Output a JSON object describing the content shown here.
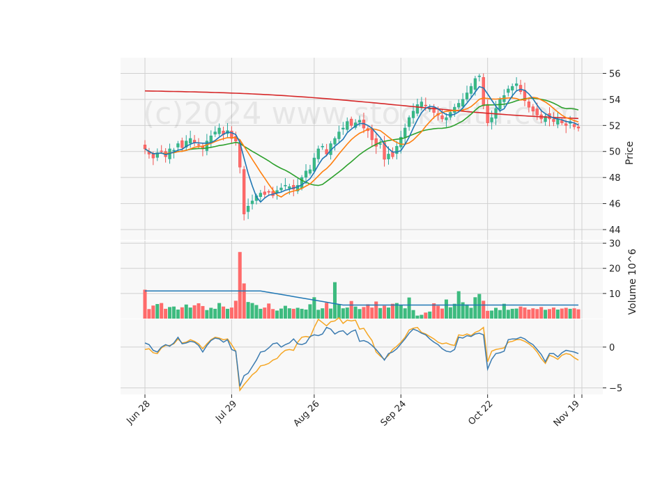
{
  "chart_data": {
    "type": "candlestick",
    "watermark": "(c)2024 www.stockdata.com",
    "colors": {
      "up": "#26a69a",
      "up_fill": "#3dbb7f",
      "down": "#ef5350",
      "down_fill": "#ff6b6b",
      "panel_bg": "#f7f7f7",
      "grid": "#d0d0d0",
      "ma_fast": "#1f77b4",
      "ma_mid": "#ff7f0e",
      "ma_slow": "#2ca02c",
      "ma_long": "#d62728",
      "osc_a": "#3b7bb0",
      "osc_b": "#f5a623"
    },
    "x_ticks": [
      "Jun 28",
      "Jul 29",
      "Aug 26",
      "Sep 24",
      "Oct 22",
      "Nov 19"
    ],
    "x_tick_index": [
      0,
      21,
      41,
      62,
      83,
      104
    ],
    "price_panel": {
      "ylabel": "Price",
      "ylim": [
        43.2,
        57.2
      ],
      "ticks": [
        44,
        46,
        48,
        50,
        52,
        54,
        56
      ]
    },
    "volume_panel": {
      "ylabel": "Volume  10^6",
      "ylim": [
        0,
        31
      ],
      "ticks": [
        10,
        20,
        30
      ]
    },
    "osc_panel": {
      "ylim": [
        -5.8,
        3.4
      ],
      "ticks": [
        -5,
        0
      ]
    },
    "closes": [
      50.2,
      49.8,
      49.5,
      49.9,
      50.0,
      49.6,
      50.2,
      50.1,
      50.6,
      50.3,
      50.8,
      51.0,
      50.7,
      50.5,
      50.2,
      50.8,
      51.2,
      51.5,
      51.8,
      51.3,
      51.6,
      51.0,
      50.8,
      48.8,
      45.2,
      45.8,
      46.2,
      46.6,
      46.8,
      46.7,
      46.9,
      46.6,
      47.0,
      47.2,
      47.4,
      47.3,
      47.1,
      47.4,
      48.0,
      48.5,
      48.6,
      49.5,
      50.2,
      50.4,
      49.8,
      50.6,
      51.0,
      51.5,
      51.8,
      52.3,
      52.0,
      52.2,
      52.4,
      51.8,
      51.6,
      50.9,
      50.4,
      50.6,
      49.4,
      49.8,
      49.6,
      50.4,
      51.1,
      51.8,
      52.6,
      53.1,
      53.6,
      53.8,
      53.5,
      53.3,
      53.0,
      52.8,
      52.5,
      52.6,
      53.0,
      53.4,
      53.7,
      54.0,
      54.5,
      55.0,
      55.6,
      55.8,
      53.5,
      52.2,
      52.6,
      53.3,
      54.0,
      54.3,
      54.8,
      55.0,
      55.2,
      54.6,
      53.9,
      53.4,
      53.1,
      52.8,
      52.5,
      52.7,
      52.5,
      52.3,
      52.5,
      52.2,
      52.0,
      52.3,
      51.9,
      51.8
    ],
    "volumes": [
      11.5,
      3.8,
      5.2,
      5.8,
      6.2,
      3.9,
      4.6,
      4.8,
      3.6,
      4.5,
      5.6,
      4.4,
      5.3,
      6.1,
      5.0,
      3.4,
      4.3,
      3.9,
      6.2,
      4.8,
      3.9,
      4.4,
      7.1,
      26.5,
      14.0,
      6.6,
      6.2,
      5.4,
      3.9,
      4.4,
      6.0,
      3.8,
      3.2,
      4.0,
      5.1,
      4.1,
      3.9,
      4.3,
      3.9,
      3.6,
      5.7,
      8.5,
      3.5,
      4.1,
      6.3,
      4.0,
      14.5,
      5.8,
      4.1,
      4.4,
      7.0,
      4.8,
      3.8,
      4.6,
      5.7,
      4.4,
      6.8,
      4.2,
      5.1,
      4.4,
      5.9,
      6.2,
      5.4,
      4.1,
      8.4,
      3.4,
      1.2,
      1.5,
      2.4,
      2.8,
      6.1,
      5.1,
      4.0,
      7.6,
      4.5,
      5.9,
      10.9,
      6.5,
      5.6,
      4.3,
      8.5,
      9.8,
      7.1,
      3.1,
      3.2,
      4.3,
      3.4,
      5.9,
      3.5,
      3.9,
      4.0,
      4.8,
      4.4,
      3.6,
      4.1,
      3.8,
      4.6,
      3.5,
      3.8,
      4.4,
      3.6,
      4.0,
      4.3,
      3.9,
      4.1,
      3.7
    ],
    "osc_a": [
      0.5,
      0.3,
      -0.4,
      -0.6,
      0.0,
      0.3,
      0.1,
      0.5,
      1.2,
      0.4,
      0.5,
      0.7,
      0.6,
      0.2,
      -0.6,
      0.2,
      0.8,
      1.1,
      1.0,
      0.6,
      0.9,
      -0.3,
      -0.5,
      -4.8,
      -3.5,
      -3.2,
      -2.4,
      -1.6,
      -0.6,
      -0.5,
      -0.1,
      0.4,
      0.5,
      0.0,
      0.3,
      0.5,
      1.0,
      0.4,
      0.3,
      0.5,
      1.3,
      1.5,
      1.4,
      1.6,
      2.4,
      2.2,
      1.6,
      1.9,
      2.0,
      1.5,
      1.9,
      2.1,
      0.7,
      0.8,
      0.6,
      0.2,
      -0.3,
      -0.9,
      -1.6,
      -0.8,
      -0.6,
      -0.2,
      0.4,
      1.0,
      1.7,
      2.2,
      2.0,
      1.7,
      1.5,
      1.0,
      0.6,
      0.3,
      -0.2,
      -0.5,
      -0.6,
      -0.3,
      1.2,
      1.1,
      1.4,
      1.3,
      1.6,
      1.7,
      1.5,
      -2.7,
      -1.5,
      -0.8,
      -0.7,
      -0.5,
      0.9,
      1.0,
      1.0,
      1.2,
      1.0,
      0.6,
      0.3,
      -0.3,
      -0.9,
      -1.8,
      -0.8,
      -0.8,
      -1.2,
      -0.7,
      -0.4,
      -0.5,
      -0.6,
      -0.8
    ],
    "osc_b": [
      -0.3,
      -0.2,
      -0.7,
      -0.8,
      -0.1,
      0.2,
      0.2,
      0.4,
      1.0,
      0.5,
      0.6,
      0.9,
      0.7,
      0.4,
      -0.2,
      0.4,
      0.9,
      1.2,
      1.1,
      0.9,
      1.0,
      0.3,
      -0.5,
      -5.3,
      -4.6,
      -4.0,
      -3.4,
      -3.0,
      -2.3,
      -2.2,
      -2.0,
      -1.6,
      -1.4,
      -0.8,
      -0.4,
      -0.3,
      -0.4,
      0.6,
      1.2,
      1.3,
      1.2,
      2.4,
      3.4,
      3.0,
      2.6,
      3.1,
      3.2,
      3.6,
      2.9,
      3.3,
      3.2,
      3.3,
      2.2,
      2.3,
      1.5,
      0.8,
      -0.6,
      -1.1,
      -1.5,
      -1.0,
      -0.3,
      0.1,
      0.6,
      1.2,
      2.1,
      2.3,
      2.4,
      1.8,
      1.6,
      1.3,
      1.0,
      0.6,
      0.4,
      0.5,
      0.3,
      0.2,
      1.5,
      1.4,
      1.6,
      1.4,
      1.8,
      2.0,
      2.4,
      -1.8,
      -0.5,
      -0.3,
      -0.2,
      -0.1,
      0.6,
      0.7,
      0.9,
      0.9,
      0.7,
      0.4,
      0.0,
      -0.6,
      -1.4,
      -2.0,
      -1.0,
      -1.2,
      -1.5,
      -1.0,
      -0.8,
      -0.9,
      -1.3,
      -1.6
    ]
  }
}
